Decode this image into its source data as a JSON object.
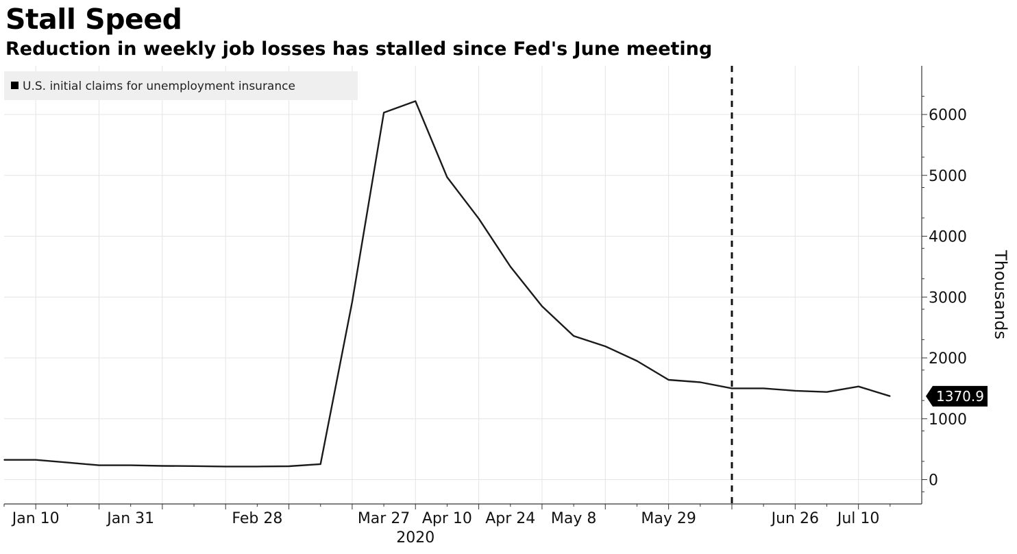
{
  "chart_data": {
    "type": "line",
    "title": "Stall Speed",
    "subtitle": "Reduction in weekly job losses has stalled since Fed's June meeting",
    "series": [
      {
        "name": "U.S. initial claims for unemployment insurance",
        "x": [
          "2020-01-03",
          "2020-01-10",
          "2020-01-17",
          "2020-01-24",
          "2020-01-31",
          "2020-02-07",
          "2020-02-14",
          "2020-02-21",
          "2020-02-28",
          "2020-03-06",
          "2020-03-13",
          "2020-03-20",
          "2020-03-27",
          "2020-04-03",
          "2020-04-10",
          "2020-04-17",
          "2020-04-24",
          "2020-05-01",
          "2020-05-08",
          "2020-05-15",
          "2020-05-22",
          "2020-05-29",
          "2020-06-05",
          "2020-06-12",
          "2020-06-19",
          "2020-06-26",
          "2020-07-03",
          "2020-07-10",
          "2020-07-17"
        ],
        "values": [
          325,
          325,
          280,
          235,
          235,
          225,
          222,
          215,
          215,
          220,
          255,
          2920,
          6030,
          6220,
          4970,
          4290,
          3500,
          2850,
          2360,
          2190,
          1950,
          1640,
          1600,
          1500,
          1500,
          1460,
          1440,
          1530,
          1370.9
        ]
      }
    ],
    "last_value_label": "1370.9",
    "x_tick_labels": [
      "Jan 10",
      "Jan 31",
      "Feb 28",
      "Mar 27",
      "Apr 10",
      "Apr 24",
      "May 8",
      "May 29",
      "Jun 26",
      "Jul 10"
    ],
    "x_year_label": "2020",
    "y_tick_labels": [
      "0",
      "1000",
      "2000",
      "3000",
      "4000",
      "5000",
      "6000"
    ],
    "ylabel": "Thousands",
    "ylim": [
      -400,
      6800
    ],
    "y_axis_side": "right",
    "vertical_marker": {
      "x": "2020-06-12",
      "style": "dashed"
    },
    "grid": true,
    "legend_placement": "top-left",
    "colors": {
      "line": "#1a1a1a",
      "grid": "#e4e4e4",
      "label_bg": "#000000",
      "legend_bg": "#efefef"
    }
  }
}
